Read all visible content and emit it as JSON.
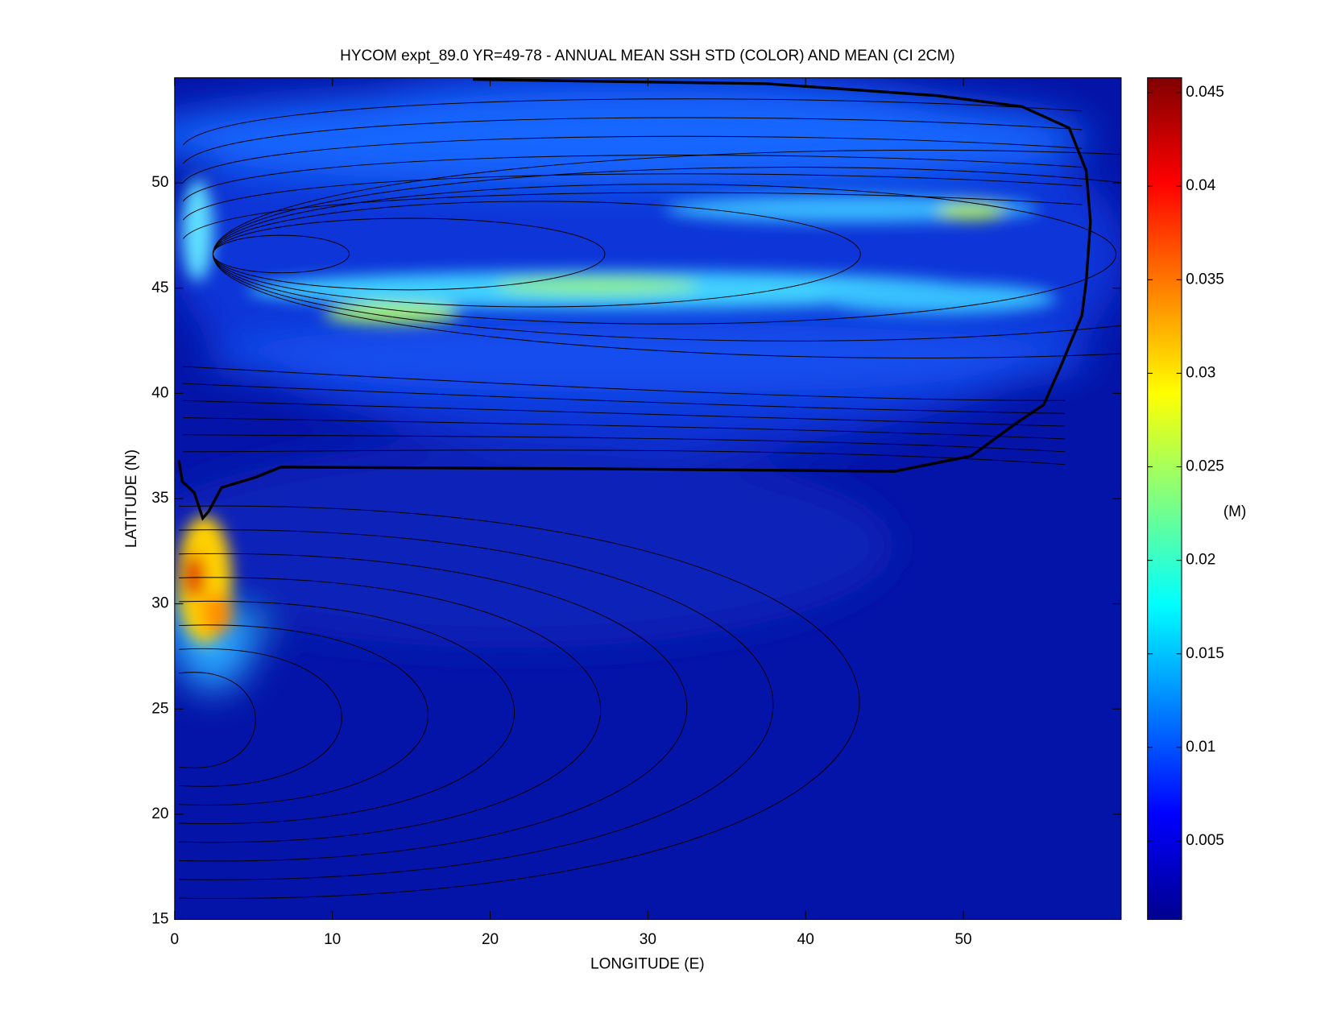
{
  "chart_data": {
    "type": "heatmap",
    "title": "HYCOM expt_89.0 YR=49-78 - ANNUAL MEAN SSH STD (COLOR) AND MEAN (CI 2CM)",
    "xlabel": "LONGITUDE (E)",
    "ylabel": "LATITUDE (N)",
    "xlim": [
      0,
      60
    ],
    "xticks": [
      0,
      10,
      20,
      30,
      40,
      50
    ],
    "ylim": [
      15,
      55
    ],
    "yticks": [
      15,
      20,
      25,
      30,
      35,
      40,
      45,
      50
    ],
    "colormap": "jet",
    "colorbar": {
      "label": "(M)",
      "clim": [
        0.0008,
        0.0458
      ],
      "ticks": [
        0.005,
        0.01,
        0.015,
        0.02,
        0.025,
        0.03,
        0.035,
        0.04,
        0.045
      ]
    }
  }
}
